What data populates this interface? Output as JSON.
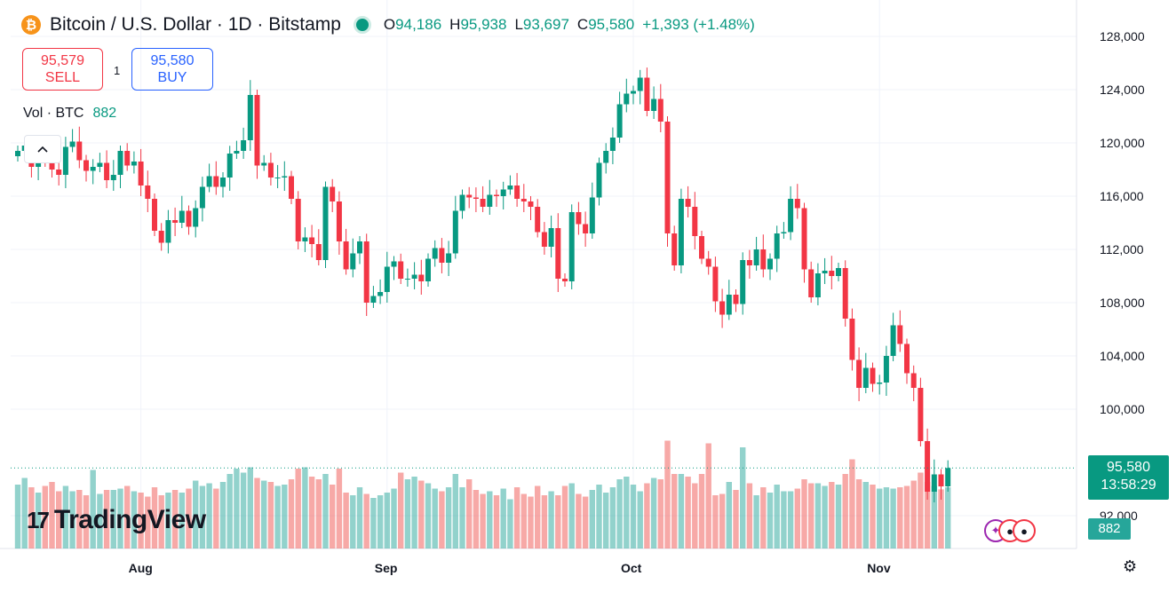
{
  "header": {
    "symbol": "Bitcoin / U.S. Dollar · 1D · Bitstamp",
    "logo_glyph": "₿",
    "open_key": "O",
    "open": "94,186",
    "high_key": "H",
    "high": "95,938",
    "low_key": "L",
    "low": "93,697",
    "close_key": "C",
    "close": "95,580",
    "change": "+1,393 (+1.48%)"
  },
  "trade": {
    "sell_price": "95,579",
    "sell_label": "SELL",
    "spread": "1",
    "buy_price": "95,580",
    "buy_label": "BUY"
  },
  "volume_legend": {
    "label": "Vol · BTC",
    "value": "882"
  },
  "collapse_glyph": "^",
  "brand": {
    "mark": "17",
    "name": "TradingView"
  },
  "y_axis_labels": [
    "128,000",
    "124,000",
    "120,000",
    "116,000",
    "112,000",
    "108,000",
    "104,000",
    "100,000",
    "92,000"
  ],
  "x_axis_labels": [
    "Aug",
    "Sep",
    "Oct",
    "Nov"
  ],
  "last_price": {
    "price": "95,580",
    "countdown": "13:58:29"
  },
  "last_volume": "882",
  "icons": {
    "settings": "settings-icon",
    "events": "economic-events-icon"
  },
  "colors": {
    "up": "#089981",
    "down": "#f23645",
    "vol_up": "#26a69a",
    "vol_down": "#ef5350"
  },
  "chart_data": {
    "type": "candlestick",
    "title": "Bitcoin / U.S. Dollar · 1D · Bitstamp",
    "ylim": [
      90000,
      129000
    ],
    "y_ticks": [
      92000,
      100000,
      104000,
      108000,
      112000,
      116000,
      120000,
      124000,
      128000
    ],
    "x_ticks": [
      "Aug",
      "Sep",
      "Oct",
      "Nov"
    ],
    "x_tick_index": [
      18,
      54,
      90,
      126
    ],
    "last_close": 95580,
    "closes": [
      119400,
      119800,
      118200,
      119100,
      118600,
      118000,
      117600,
      119700,
      120100,
      118700,
      117900,
      118200,
      118500,
      117200,
      117600,
      119400,
      118300,
      118600,
      116800,
      115800,
      113400,
      112500,
      114200,
      114000,
      114900,
      113700,
      115100,
      116700,
      117500,
      116700,
      117400,
      119200,
      119400,
      120200,
      123600,
      118300,
      118500,
      117400,
      117400,
      117500,
      115800,
      112600,
      112900,
      112400,
      111200,
      116700,
      115600,
      112600,
      110500,
      111700,
      112600,
      108000,
      108500,
      108800,
      110700,
      111100,
      109800,
      109800,
      110100,
      109600,
      111300,
      112100,
      111000,
      111700,
      114900,
      116100,
      115900,
      115800,
      115200,
      116100,
      116000,
      116500,
      116800,
      115800,
      115600,
      115200,
      113300,
      112200,
      113600,
      109800,
      109600,
      114800,
      113900,
      113200,
      115900,
      118500,
      119400,
      120400,
      122900,
      123700,
      123900,
      124900,
      122400,
      123300,
      121600,
      113200,
      110800,
      115800,
      115200,
      113000,
      111300,
      110700,
      108100,
      107100,
      108600,
      107900,
      111200,
      110800,
      112000,
      110500,
      111300,
      113200,
      113300,
      115800,
      115100,
      110500,
      108400,
      110200,
      110400,
      110000,
      110600,
      106800,
      103700,
      101600,
      103100,
      101900,
      102000,
      104000,
      106300,
      104900,
      102700,
      101600,
      97600,
      93800,
      95100,
      94200,
      95580
    ],
    "volumes": [
      240,
      265,
      230,
      210,
      235,
      250,
      215,
      235,
      215,
      220,
      200,
      295,
      205,
      220,
      220,
      225,
      235,
      215,
      210,
      195,
      230,
      200,
      210,
      220,
      210,
      225,
      255,
      235,
      245,
      225,
      250,
      280,
      300,
      285,
      305,
      265,
      255,
      250,
      235,
      240,
      260,
      300,
      305,
      270,
      260,
      280,
      240,
      300,
      210,
      200,
      230,
      205,
      190,
      200,
      210,
      225,
      285,
      260,
      270,
      255,
      245,
      225,
      215,
      230,
      280,
      230,
      260,
      220,
      205,
      215,
      200,
      225,
      185,
      230,
      205,
      195,
      235,
      200,
      215,
      200,
      235,
      245,
      205,
      195,
      220,
      240,
      210,
      230,
      260,
      270,
      240,
      215,
      245,
      265,
      260,
      405,
      280,
      280,
      270,
      245,
      280,
      395,
      200,
      205,
      250,
      220,
      380,
      245,
      200,
      230,
      210,
      240,
      215,
      215,
      225,
      260,
      245,
      245,
      235,
      250,
      240,
      280,
      335,
      260,
      250,
      240,
      225,
      230,
      225,
      230,
      235,
      255,
      285,
      250,
      235,
      222,
      230
    ]
  }
}
